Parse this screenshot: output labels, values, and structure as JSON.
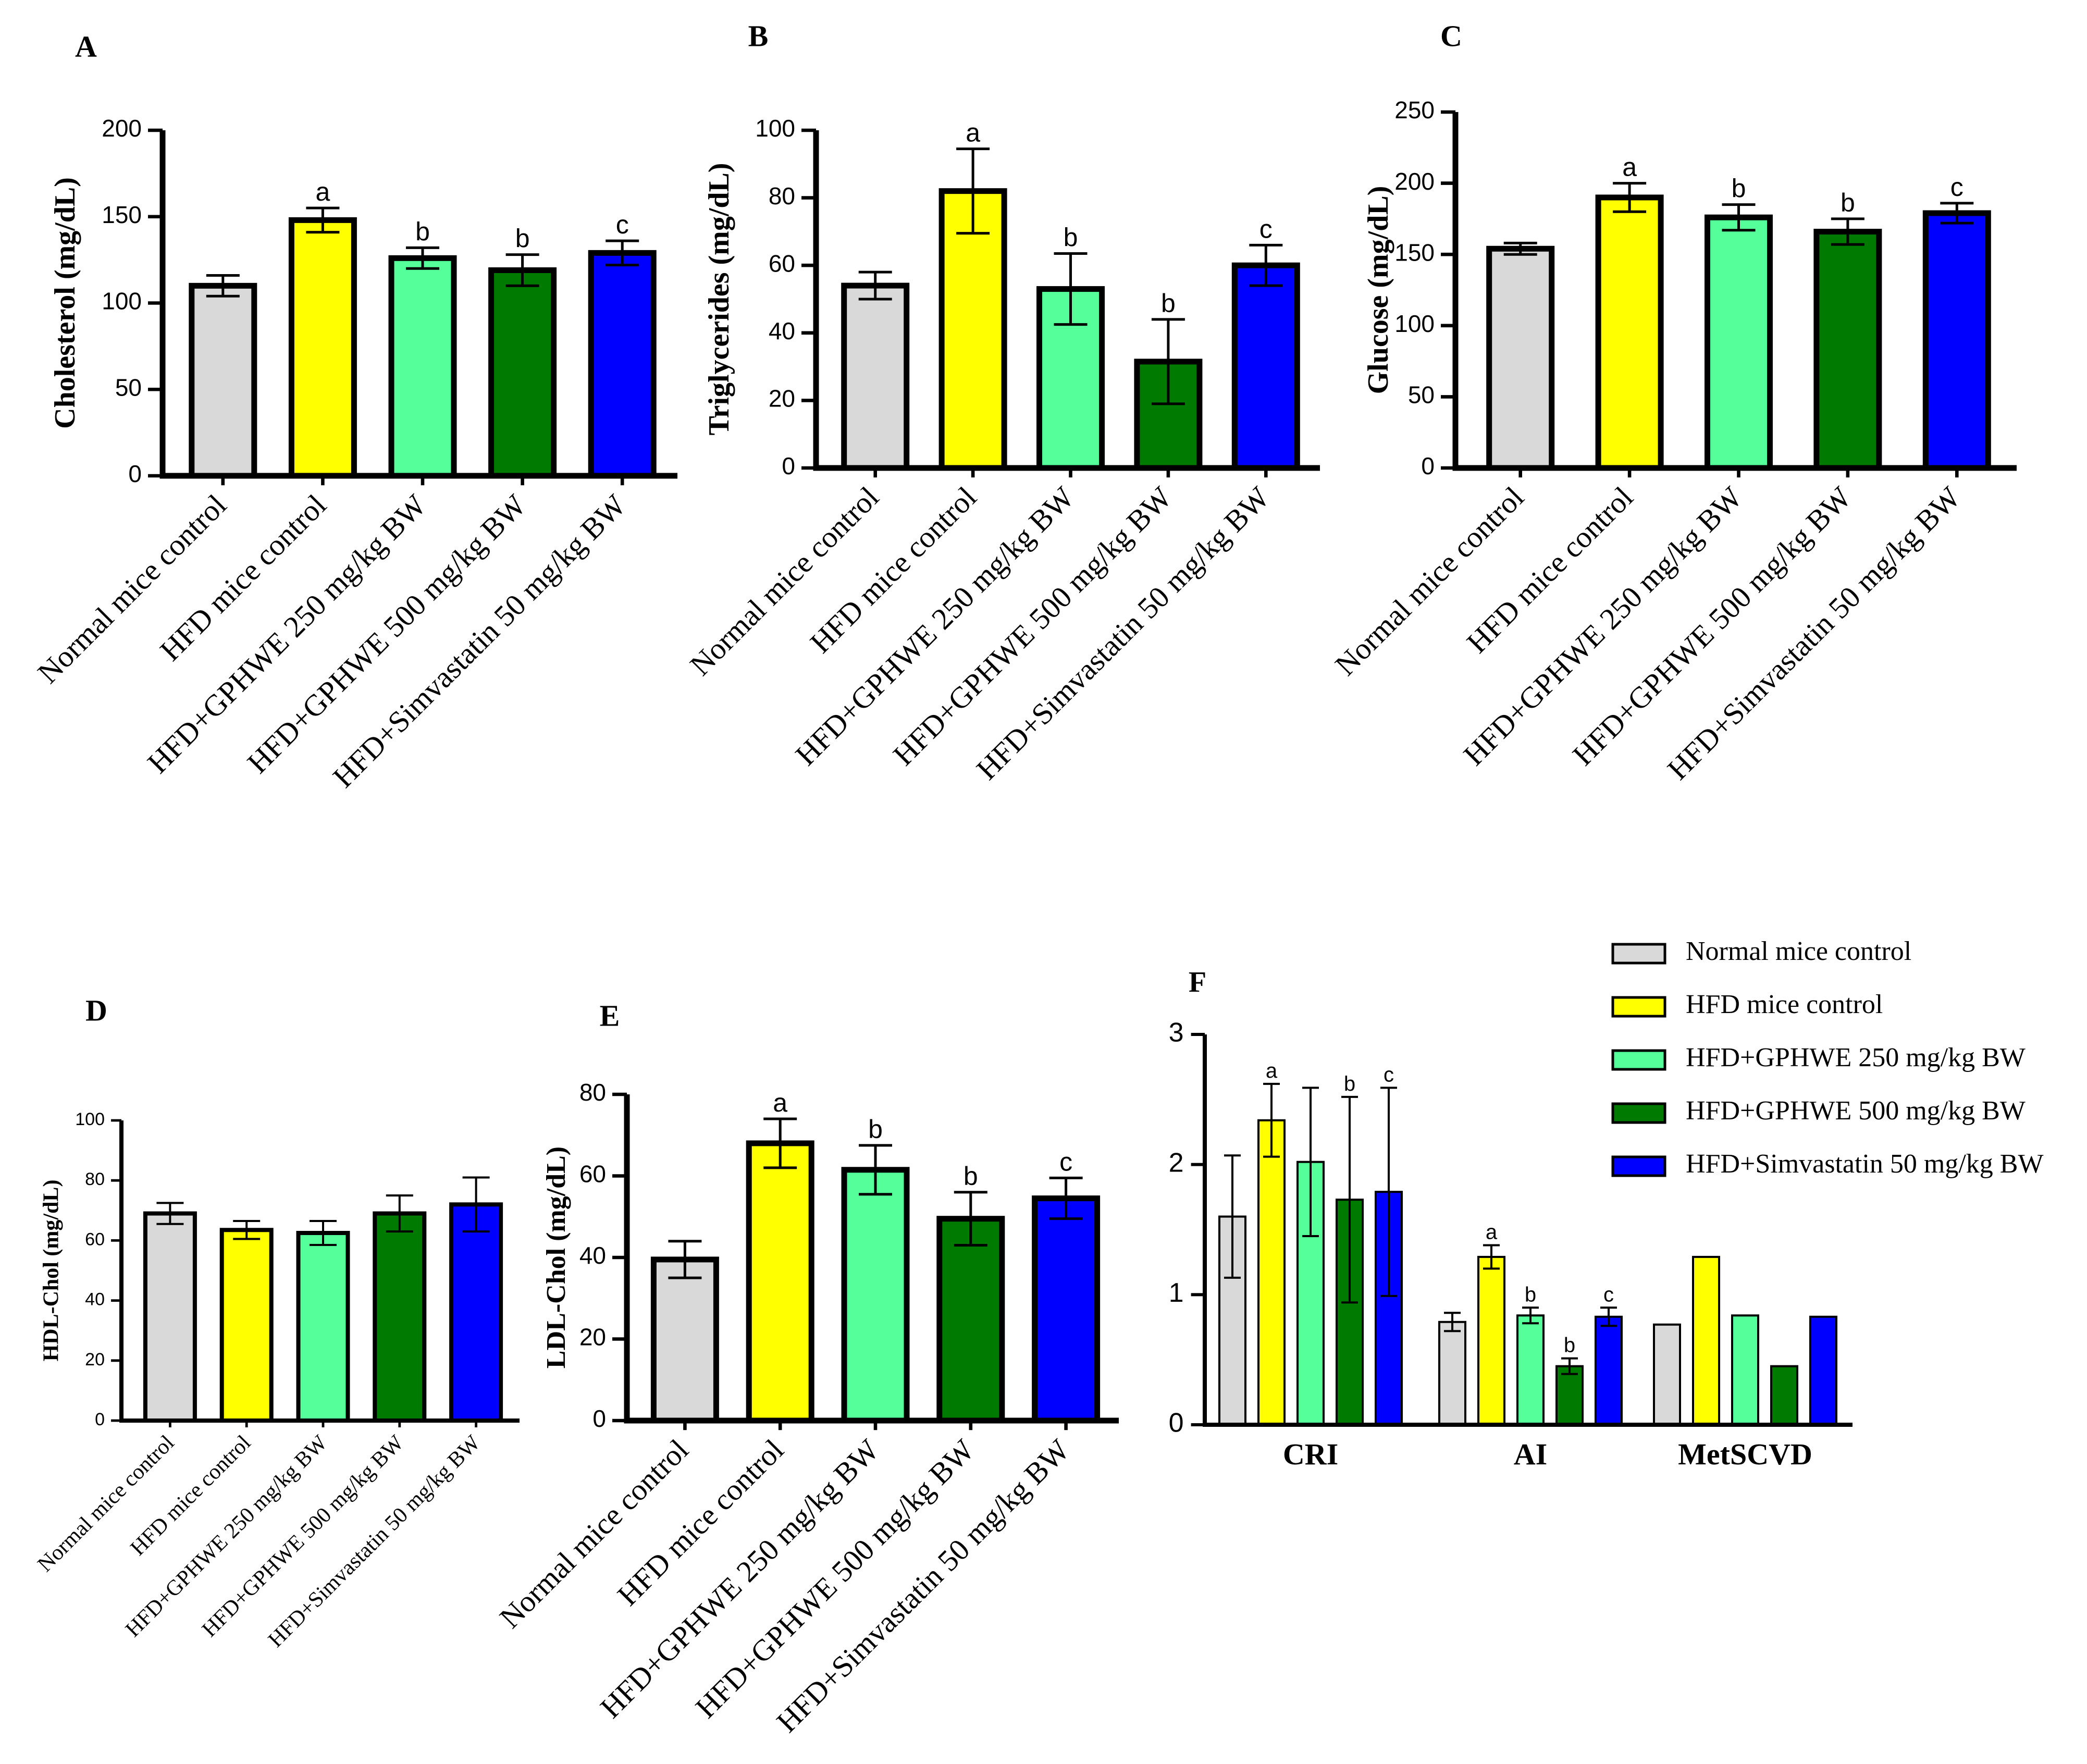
{
  "figure_title": "",
  "colors": {
    "Normal mice control": "#d9d9d9",
    "HFD mice control": "#ffff00",
    "HFD+GPHWE 250 mg/kg BW": "#55ff99",
    "HFD+GPHWE 500 mg/kg BW": "#007a00",
    "HFD+Simvastatin 50 mg/kg BW": "#0000ff"
  },
  "legend": {
    "items": [
      "Normal mice control",
      "HFD mice control",
      "HFD+GPHWE 250 mg/kg BW",
      "HFD+GPHWE 500 mg/kg BW",
      "HFD+Simvastatin 50 mg/kg BW"
    ]
  },
  "chart_data": [
    {
      "panel": "A",
      "type": "bar",
      "ylabel": "Cholesterol (mg/dL)",
      "ylim": [
        0,
        200
      ],
      "yticks": [
        "0",
        "50",
        "100",
        "150",
        "200"
      ],
      "categories": [
        "Normal mice control",
        "HFD mice control",
        "HFD+GPHWE 250 mg/kg BW",
        "HFD+GPHWE 500 mg/kg BW",
        "HFD+Simvastatin 50 mg/kg BW"
      ],
      "values": [
        110,
        148,
        126,
        119,
        129
      ],
      "errors": [
        6,
        7,
        6,
        9,
        7
      ],
      "significance": [
        "",
        "a",
        "b",
        "b",
        "c"
      ]
    },
    {
      "panel": "B",
      "type": "bar",
      "ylabel": "Triglycerides (mg/dL)",
      "ylim": [
        0,
        100
      ],
      "yticks": [
        "0",
        "20",
        "40",
        "60",
        "80",
        "100"
      ],
      "categories": [
        "Normal mice control",
        "HFD mice control",
        "HFD+GPHWE 250 mg/kg BW",
        "HFD+GPHWE 500 mg/kg BW",
        "HFD+Simvastatin 50 mg/kg BW"
      ],
      "values": [
        54,
        82,
        53,
        31.5,
        60
      ],
      "errors": [
        4,
        12.5,
        10.5,
        12.5,
        6
      ],
      "significance": [
        "",
        "a",
        "b",
        "b",
        "c"
      ]
    },
    {
      "panel": "C",
      "type": "bar",
      "ylabel": "Glucose (mg/dL)",
      "ylim": [
        0,
        250
      ],
      "yticks": [
        "0",
        "50",
        "100",
        "150",
        "200",
        "250"
      ],
      "categories": [
        "Normal mice control",
        "HFD mice control",
        "HFD+GPHWE 250 mg/kg BW",
        "HFD+GPHWE 500 mg/kg BW",
        "HFD+Simvastatin 50 mg/kg BW"
      ],
      "values": [
        154,
        190,
        176,
        166,
        179
      ],
      "errors": [
        4,
        10,
        9,
        9,
        7
      ],
      "significance": [
        "",
        "a",
        "b",
        "b",
        "c"
      ]
    },
    {
      "panel": "D",
      "type": "bar",
      "ylabel": "HDL-Chol (mg/dL)",
      "ylim": [
        0,
        100
      ],
      "yticks": [
        "0",
        "20",
        "40",
        "60",
        "80",
        "100"
      ],
      "categories": [
        "Normal mice control",
        "HFD mice control",
        "HFD+GPHWE 250 mg/kg BW",
        "HFD+GPHWE 500 mg/kg BW",
        "HFD+Simvastatin 50 mg/kg BW"
      ],
      "values": [
        69,
        63.5,
        62.5,
        69,
        72
      ],
      "errors": [
        3.5,
        3,
        4,
        6,
        9
      ],
      "significance": [
        "",
        "",
        "",
        "",
        ""
      ]
    },
    {
      "panel": "E",
      "type": "bar",
      "ylabel": "LDL-Chol (mg/dL)",
      "ylim": [
        0,
        80
      ],
      "yticks": [
        "0",
        "20",
        "40",
        "60",
        "80"
      ],
      "categories": [
        "Normal mice control",
        "HFD mice control",
        "HFD+GPHWE 250 mg/kg BW",
        "HFD+GPHWE 500 mg/kg BW",
        "HFD+Simvastatin 50 mg/kg BW"
      ],
      "values": [
        39.5,
        68,
        61.5,
        49.5,
        54.5
      ],
      "errors": [
        4.5,
        6,
        6,
        6.5,
        5
      ],
      "significance": [
        "",
        "a",
        "b",
        "b",
        "c"
      ]
    },
    {
      "panel": "F",
      "type": "bar",
      "ylabel": "",
      "ylim": [
        0,
        3
      ],
      "yticks": [
        "0",
        "1",
        "2",
        "3"
      ],
      "categories": [
        "CRI",
        "AI",
        "MetSCVD"
      ],
      "series": [
        {
          "name": "Normal mice control",
          "values": [
            1.6,
            0.79,
            0.77
          ],
          "errors": [
            0.47,
            0.07,
            0
          ],
          "significance": [
            "",
            "",
            ""
          ]
        },
        {
          "name": "HFD mice control",
          "values": [
            2.34,
            1.29,
            1.29
          ],
          "errors": [
            0.28,
            0.09,
            0
          ],
          "significance": [
            "a",
            "a",
            ""
          ]
        },
        {
          "name": "HFD+GPHWE 250 mg/kg BW",
          "values": [
            2.02,
            0.84,
            0.84
          ],
          "errors": [
            0.57,
            0.06,
            0
          ],
          "significance": [
            "",
            "b",
            ""
          ]
        },
        {
          "name": "HFD+GPHWE 500 mg/kg BW",
          "values": [
            1.73,
            0.45,
            0.45
          ],
          "errors": [
            0.79,
            0.06,
            0
          ],
          "significance": [
            "b",
            "b",
            ""
          ]
        },
        {
          "name": "HFD+Simvastatin 50 mg/kg BW",
          "values": [
            1.79,
            0.83,
            0.83
          ],
          "errors": [
            0.8,
            0.07,
            0
          ],
          "significance": [
            "c",
            "c",
            ""
          ]
        }
      ]
    }
  ]
}
